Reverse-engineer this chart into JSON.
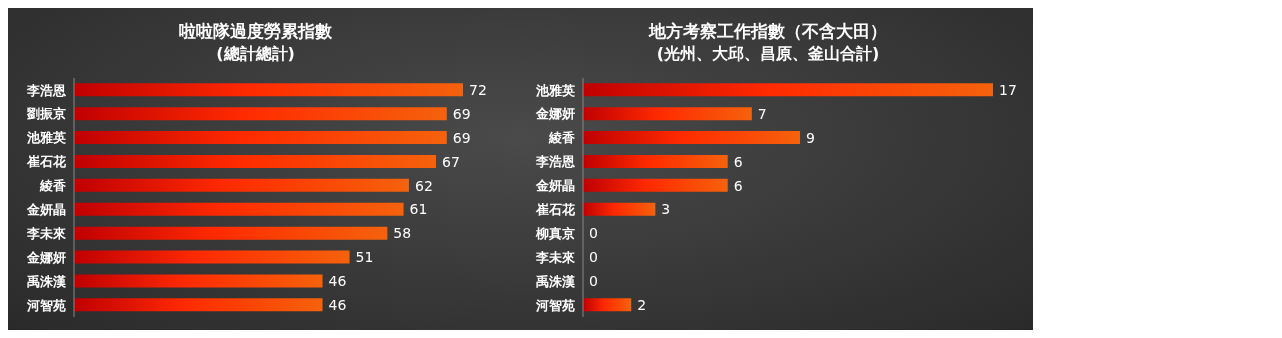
{
  "chart_data": [
    {
      "type": "bar",
      "orientation": "horizontal",
      "title": "啦啦隊過度勞累指數",
      "subtitle": "(總計總計)",
      "categories": [
        "李浩恩",
        "劉振京",
        "池雅英",
        "崔石花",
        "綾香",
        "金妍晶",
        "李未來",
        "金娜妍",
        "禹洙漢",
        "河智苑"
      ],
      "values": [
        72,
        69,
        69,
        67,
        62,
        61,
        58,
        51,
        46,
        46
      ],
      "color": "#f5620c",
      "tick_labels": "y",
      "data_labels": true
    },
    {
      "type": "bar",
      "orientation": "horizontal",
      "title": "地方考察工作指數（不含大田）",
      "subtitle": "(光州、大邱、昌原、釜山合計)",
      "categories": [
        "池雅英",
        "金娜妍",
        "綾香",
        "李浩恩",
        "金妍晶",
        "崔石花",
        "柳真京",
        "李未來",
        "禹洙漢",
        "河智苑"
      ],
      "values": [
        17,
        7,
        9,
        6,
        6,
        3,
        0,
        0,
        0,
        2
      ],
      "color": "#f5620c",
      "tick_labels": "y",
      "data_labels": true
    }
  ]
}
